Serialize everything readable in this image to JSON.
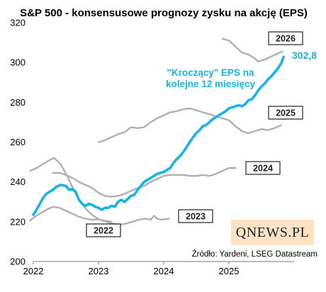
{
  "chart_data": {
    "type": "line",
    "title": "S&P 500 - konsensusowe prognozy zysku na akcję (EPS)",
    "xlabel": "",
    "ylabel": "",
    "x_ticks": [
      "2022",
      "2023",
      "2024",
      "2025"
    ],
    "y_ticks": [
      "200",
      "220",
      "240",
      "260",
      "280",
      "300",
      "320"
    ],
    "ylim": [
      200,
      320
    ],
    "xlim": [
      2022.0,
      2026.0
    ],
    "grid": false,
    "colors": {
      "forward": "#19b4e6",
      "annual": "#b0b0b0",
      "box_border": "#222222"
    },
    "series": [
      {
        "name": "2022",
        "label_box": "2022",
        "values": [
          [
            2021.95,
            220.5
          ],
          [
            2022.0,
            222.0
          ],
          [
            2022.1,
            224.0
          ],
          [
            2022.2,
            226.0
          ],
          [
            2022.3,
            227.5
          ],
          [
            2022.4,
            227.0
          ],
          [
            2022.5,
            225.5
          ],
          [
            2022.6,
            224.0
          ],
          [
            2022.7,
            222.5
          ],
          [
            2022.8,
            221.5
          ],
          [
            2022.9,
            221.0
          ],
          [
            2023.0,
            221.2
          ],
          [
            2023.1,
            220.5
          ],
          [
            2023.2,
            220.0
          ]
        ]
      },
      {
        "name": "2023",
        "label_box": "2023",
        "values": [
          [
            2021.95,
            245.5
          ],
          [
            2022.05,
            247.0
          ],
          [
            2022.15,
            249.0
          ],
          [
            2022.25,
            251.0
          ],
          [
            2022.32,
            252.0
          ],
          [
            2022.42,
            249.0
          ],
          [
            2022.52,
            243.0
          ],
          [
            2022.62,
            236.0
          ],
          [
            2022.72,
            230.0
          ],
          [
            2022.82,
            226.0
          ],
          [
            2022.92,
            223.0
          ],
          [
            2023.02,
            221.0
          ],
          [
            2023.12,
            220.0
          ],
          [
            2023.22,
            219.0
          ],
          [
            2023.32,
            218.5
          ],
          [
            2023.42,
            219.0
          ],
          [
            2023.52,
            220.0
          ],
          [
            2023.62,
            221.0
          ],
          [
            2023.72,
            221.5
          ],
          [
            2023.8,
            221.0
          ],
          [
            2023.85,
            223.0
          ],
          [
            2023.9,
            221.5
          ],
          [
            2023.97,
            221.0
          ],
          [
            2024.08,
            221.5
          ]
        ]
      },
      {
        "name": "2024",
        "label_box": "2024",
        "values": [
          [
            2022.3,
            244.5
          ],
          [
            2022.4,
            244.5
          ],
          [
            2022.5,
            243.5
          ],
          [
            2022.6,
            242.0
          ],
          [
            2022.7,
            240.0
          ],
          [
            2022.8,
            238.5
          ],
          [
            2022.9,
            237.0
          ],
          [
            2023.0,
            234.5
          ],
          [
            2023.1,
            233.0
          ],
          [
            2023.2,
            232.5
          ],
          [
            2023.3,
            233.0
          ],
          [
            2023.4,
            234.0
          ],
          [
            2023.5,
            235.5
          ],
          [
            2023.6,
            237.0
          ],
          [
            2023.7,
            238.0
          ],
          [
            2023.8,
            240.0
          ],
          [
            2023.9,
            241.5
          ],
          [
            2024.0,
            243.0
          ],
          [
            2024.1,
            243.5
          ],
          [
            2024.2,
            243.5
          ],
          [
            2024.3,
            243.5
          ],
          [
            2024.4,
            243.0
          ],
          [
            2024.5,
            243.0
          ],
          [
            2024.6,
            243.5
          ],
          [
            2024.7,
            243.0
          ],
          [
            2024.8,
            244.0
          ],
          [
            2024.9,
            245.5
          ],
          [
            2025.0,
            247.0
          ],
          [
            2025.1,
            247.0
          ]
        ]
      },
      {
        "name": "2025",
        "label_box": "2025",
        "values": [
          [
            2023.0,
            260.0
          ],
          [
            2023.1,
            261.0
          ],
          [
            2023.2,
            262.5
          ],
          [
            2023.3,
            264.0
          ],
          [
            2023.4,
            265.0
          ],
          [
            2023.5,
            267.5
          ],
          [
            2023.6,
            267.0
          ],
          [
            2023.7,
            267.5
          ],
          [
            2023.8,
            270.0
          ],
          [
            2023.9,
            272.0
          ],
          [
            2024.0,
            273.5
          ],
          [
            2024.1,
            275.0
          ],
          [
            2024.2,
            275.5
          ],
          [
            2024.3,
            276.5
          ],
          [
            2024.4,
            277.0
          ],
          [
            2024.5,
            276.0
          ],
          [
            2024.6,
            275.0
          ],
          [
            2024.7,
            274.0
          ],
          [
            2024.8,
            273.0
          ],
          [
            2024.9,
            272.0
          ],
          [
            2025.0,
            271.0
          ],
          [
            2025.1,
            268.0
          ],
          [
            2025.2,
            265.5
          ],
          [
            2025.3,
            264.5
          ],
          [
            2025.4,
            265.5
          ],
          [
            2025.5,
            266.5
          ],
          [
            2025.6,
            266.0
          ],
          [
            2025.7,
            267.0
          ],
          [
            2025.8,
            268.5
          ]
        ]
      },
      {
        "name": "2026",
        "label_box": "2026",
        "values": [
          [
            2024.9,
            312.0
          ],
          [
            2025.0,
            311.0
          ],
          [
            2025.1,
            308.0
          ],
          [
            2025.2,
            305.0
          ],
          [
            2025.3,
            304.0
          ],
          [
            2025.4,
            302.0
          ],
          [
            2025.45,
            300.5
          ],
          [
            2025.55,
            301.5
          ],
          [
            2025.65,
            303.0
          ],
          [
            2025.75,
            304.5
          ],
          [
            2025.82,
            305.5
          ]
        ]
      },
      {
        "name": "\"Kroczący\" EPS na kolejne 12 miesięcy",
        "values": [
          [
            2022.0,
            223.5
          ],
          [
            2022.05,
            226.0
          ],
          [
            2022.1,
            229.0
          ],
          [
            2022.15,
            232.0
          ],
          [
            2022.2,
            234.0
          ],
          [
            2022.25,
            235.0
          ],
          [
            2022.3,
            236.0
          ],
          [
            2022.35,
            237.5
          ],
          [
            2022.42,
            238.5
          ],
          [
            2022.5,
            238.0
          ],
          [
            2022.55,
            236.0
          ],
          [
            2022.6,
            236.5
          ],
          [
            2022.65,
            235.0
          ],
          [
            2022.7,
            231.0
          ],
          [
            2022.75,
            229.0
          ],
          [
            2022.8,
            228.0
          ],
          [
            2022.85,
            229.0
          ],
          [
            2022.9,
            228.5
          ],
          [
            2022.95,
            227.5
          ],
          [
            2023.0,
            227.0
          ],
          [
            2023.05,
            226.0
          ],
          [
            2023.1,
            227.0
          ],
          [
            2023.15,
            227.0
          ],
          [
            2023.2,
            228.0
          ],
          [
            2023.25,
            227.5
          ],
          [
            2023.3,
            230.0
          ],
          [
            2023.35,
            231.0
          ],
          [
            2023.4,
            230.0
          ],
          [
            2023.45,
            231.5
          ],
          [
            2023.5,
            233.0
          ],
          [
            2023.55,
            233.5
          ],
          [
            2023.6,
            236.0
          ],
          [
            2023.65,
            238.0
          ],
          [
            2023.7,
            240.0
          ],
          [
            2023.75,
            241.0
          ],
          [
            2023.8,
            242.0
          ],
          [
            2023.85,
            243.0
          ],
          [
            2023.9,
            244.0
          ],
          [
            2023.95,
            244.5
          ],
          [
            2024.0,
            245.0
          ],
          [
            2024.05,
            246.0
          ],
          [
            2024.1,
            247.0
          ],
          [
            2024.15,
            249.5
          ],
          [
            2024.2,
            251.5
          ],
          [
            2024.25,
            253.0
          ],
          [
            2024.3,
            255.0
          ],
          [
            2024.35,
            257.5
          ],
          [
            2024.4,
            260.0
          ],
          [
            2024.45,
            262.5
          ],
          [
            2024.5,
            264.5
          ],
          [
            2024.55,
            266.0
          ],
          [
            2024.6,
            268.0
          ],
          [
            2024.65,
            268.5
          ],
          [
            2024.7,
            270.0
          ],
          [
            2024.75,
            271.5
          ],
          [
            2024.8,
            272.5
          ],
          [
            2024.85,
            273.5
          ],
          [
            2024.9,
            274.5
          ],
          [
            2024.95,
            275.5
          ],
          [
            2025.0,
            277.0
          ],
          [
            2025.05,
            277.5
          ],
          [
            2025.1,
            278.0
          ],
          [
            2025.15,
            278.5
          ],
          [
            2025.2,
            278.0
          ],
          [
            2025.25,
            279.0
          ],
          [
            2025.3,
            281.0
          ],
          [
            2025.35,
            281.5
          ],
          [
            2025.4,
            283.5
          ],
          [
            2025.45,
            286.0
          ],
          [
            2025.5,
            288.0
          ],
          [
            2025.55,
            289.5
          ],
          [
            2025.6,
            291.5
          ],
          [
            2025.65,
            293.0
          ],
          [
            2025.7,
            295.0
          ],
          [
            2025.75,
            297.0
          ],
          [
            2025.8,
            299.5
          ],
          [
            2025.84,
            302.8
          ]
        ]
      }
    ],
    "annotations": {
      "forward_label_line1": "\"Kroczący\" EPS na",
      "forward_label_line2": "kolejne 12 miesięcy",
      "last_value": "302,8",
      "source": "Źródło: Yardeni, LSEG Datastream"
    }
  },
  "logo": {
    "text": "QNEWS.PL"
  }
}
